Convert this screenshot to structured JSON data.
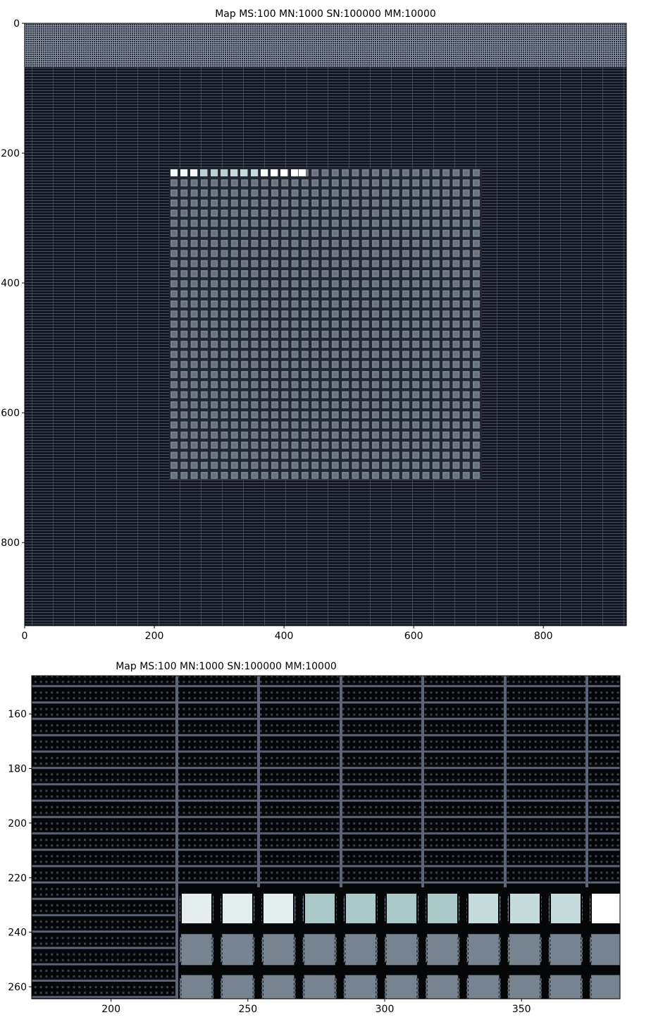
{
  "chart_data": [
    {
      "type": "image",
      "title": "Map MS:100 MN:1000 SN:100000 MM:10000",
      "xlim": [
        0,
        928
      ],
      "ylim": [
        928,
        0
      ],
      "xticks": [
        0,
        200,
        400,
        600,
        800
      ],
      "yticks": [
        0,
        200,
        400,
        600,
        800
      ]
    },
    {
      "type": "image",
      "title": "Map MS:100 MN:1000 SN:100000 MM:10000",
      "xlim": [
        171,
        386
      ],
      "ylim": [
        264.4,
        146
      ],
      "xticks": [
        200,
        250,
        300,
        350
      ],
      "yticks": [
        160,
        180,
        200,
        220,
        240,
        260
      ]
    }
  ]
}
